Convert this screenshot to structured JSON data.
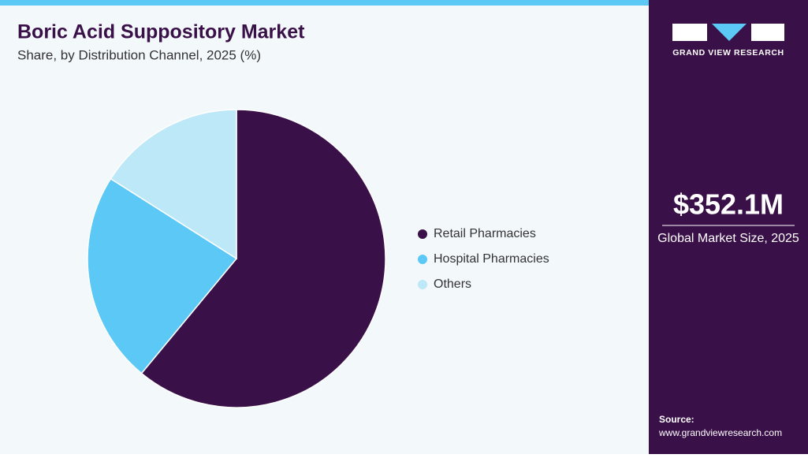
{
  "chart_data": {
    "type": "pie",
    "title": "Boric Acid Suppository Market",
    "subtitle": "Share, by Distribution Channel, 2025 (%)",
    "categories": [
      "Retail Pharmacies",
      "Hospital Pharmacies",
      "Others"
    ],
    "values": [
      61,
      23,
      16
    ],
    "colors": [
      "#3a1048",
      "#5bc8f5",
      "#bde8f8"
    ]
  },
  "sidebar": {
    "brand": "GRAND VIEW RESEARCH",
    "market_size": "$352.1M",
    "market_size_label": "Global Market Size, 2025",
    "source_label": "Source:",
    "source_url": "www.grandviewresearch.com"
  }
}
